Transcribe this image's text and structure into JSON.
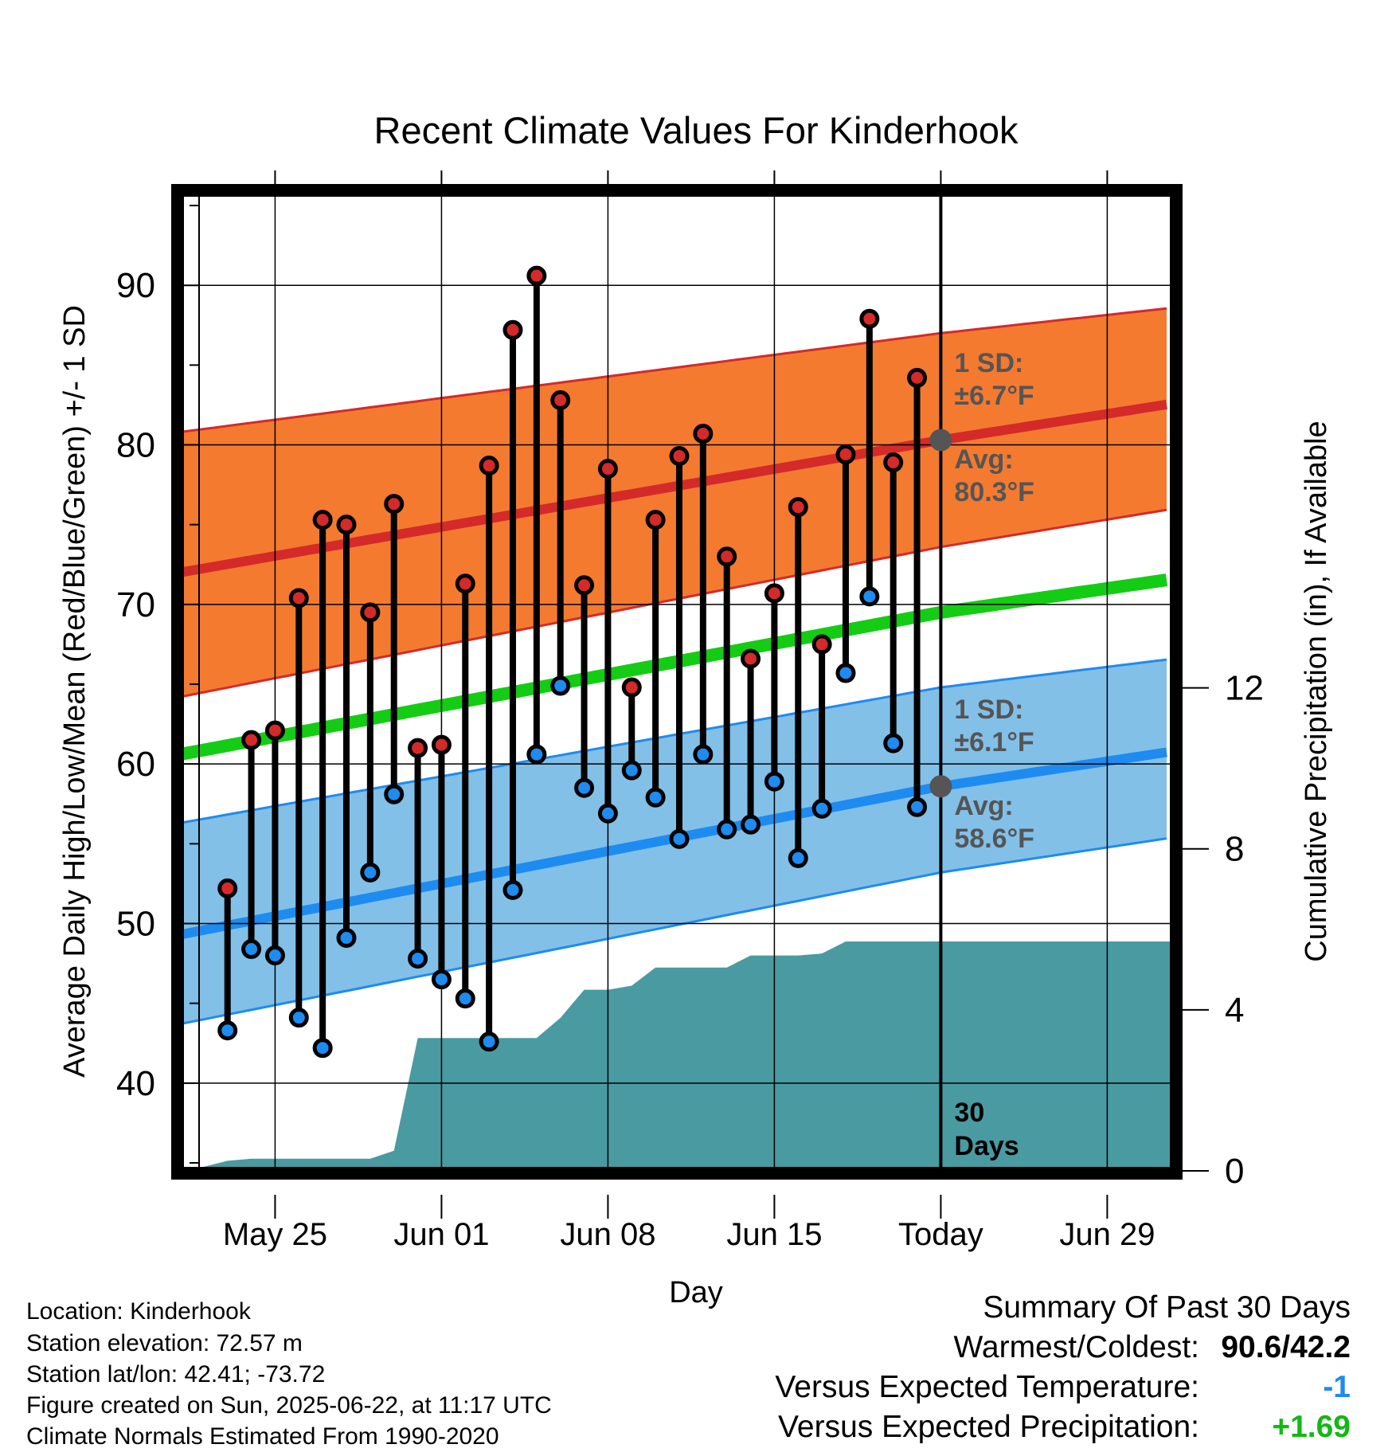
{
  "chart_data": {
    "type": "line",
    "title": "Recent Climate Values For Kinderhook",
    "xlabel": "Day",
    "ylabel": "Average Daily High/Low/Mean (Red/Blue/Green) +/- 1 SD",
    "y2label": "Cumulative Precipitation (in), If Available",
    "ylim": [
      34.5,
      95.8
    ],
    "y2lim": [
      0,
      24.3
    ],
    "y_ticks": [
      40,
      50,
      60,
      70,
      80,
      90
    ],
    "y2_ticks": [
      0,
      4,
      8,
      12
    ],
    "x_ticks": [
      {
        "day": 4,
        "label": "May 25"
      },
      {
        "day": 11,
        "label": "Jun 01"
      },
      {
        "day": 18,
        "label": "Jun 08"
      },
      {
        "day": 25,
        "label": "Jun 15"
      },
      {
        "day": 32,
        "label": "Today"
      },
      {
        "day": 39,
        "label": "Jun 29"
      }
    ],
    "x_range": [
      0,
      41.8
    ],
    "grid": true,
    "days": [
      {
        "day": 2,
        "high": 52.2,
        "low": 43.3
      },
      {
        "day": 3,
        "high": 61.5,
        "low": 48.4
      },
      {
        "day": 4,
        "high": 62.1,
        "low": 48.0
      },
      {
        "day": 5,
        "high": 70.4,
        "low": 44.1
      },
      {
        "day": 6,
        "high": 75.3,
        "low": 42.2
      },
      {
        "day": 7,
        "high": 75.0,
        "low": 49.1
      },
      {
        "day": 8,
        "high": 69.5,
        "low": 53.2
      },
      {
        "day": 9,
        "high": 76.3,
        "low": 58.1
      },
      {
        "day": 10,
        "high": 61.0,
        "low": 47.8
      },
      {
        "day": 11,
        "high": 61.2,
        "low": 46.5
      },
      {
        "day": 12,
        "high": 71.3,
        "low": 45.3
      },
      {
        "day": 13,
        "high": 78.7,
        "low": 42.6
      },
      {
        "day": 14,
        "high": 87.2,
        "low": 52.1
      },
      {
        "day": 15,
        "high": 90.6,
        "low": 60.6
      },
      {
        "day": 16,
        "high": 82.8,
        "low": 64.9
      },
      {
        "day": 17,
        "high": 71.2,
        "low": 58.5
      },
      {
        "day": 18,
        "high": 78.5,
        "low": 56.9
      },
      {
        "day": 19,
        "high": 64.8,
        "low": 59.6
      },
      {
        "day": 20,
        "high": 75.3,
        "low": 57.9
      },
      {
        "day": 21,
        "high": 79.3,
        "low": 55.3
      },
      {
        "day": 22,
        "high": 80.7,
        "low": 60.6
      },
      {
        "day": 23,
        "high": 73.0,
        "low": 55.9
      },
      {
        "day": 24,
        "high": 66.6,
        "low": 56.2
      },
      {
        "day": 25,
        "high": 70.7,
        "low": 58.9
      },
      {
        "day": 26,
        "high": 76.1,
        "low": 54.1
      },
      {
        "day": 27,
        "high": 67.5,
        "low": 57.2
      },
      {
        "day": 28,
        "high": 79.4,
        "low": 65.7
      },
      {
        "day": 29,
        "high": 87.9,
        "low": 70.5
      },
      {
        "day": 30,
        "high": 78.9,
        "low": 61.3
      },
      {
        "day": 31,
        "high": 84.2,
        "low": 57.3
      }
    ],
    "normals": {
      "day": [
        0,
        32,
        41.8
      ],
      "high_avg": [
        72.0,
        80.3,
        82.6
      ],
      "high_plus_sd": [
        80.8,
        87.0,
        88.6
      ],
      "high_minus_sd": [
        64.2,
        73.6,
        76.0
      ],
      "mean": [
        60.6,
        69.5,
        71.6
      ],
      "low_avg": [
        49.3,
        58.6,
        60.8
      ],
      "low_plus_sd": [
        56.3,
        64.8,
        66.6
      ],
      "low_minus_sd": [
        43.7,
        53.2,
        55.4
      ]
    },
    "precip": {
      "day": [
        0,
        1,
        2,
        3,
        4,
        5,
        6,
        7,
        8,
        9,
        10,
        11,
        12,
        13,
        14,
        15,
        16,
        17,
        18,
        19,
        20,
        21,
        22,
        23,
        24,
        25,
        26,
        27,
        28,
        29,
        30,
        31,
        32,
        41.8
      ],
      "cum": [
        0.0,
        0.1,
        0.25,
        0.3,
        0.3,
        0.3,
        0.3,
        0.3,
        0.3,
        0.5,
        3.3,
        3.3,
        3.3,
        3.3,
        3.3,
        3.3,
        3.8,
        4.5,
        4.5,
        4.6,
        5.05,
        5.05,
        5.05,
        5.05,
        5.35,
        5.35,
        5.35,
        5.4,
        5.7,
        5.7,
        5.7,
        5.7,
        5.7,
        5.7
      ]
    },
    "today_day": 32,
    "annotations": {
      "high_sd_label": "1 SD:",
      "high_sd_value": "±6.7°F",
      "high_avg_label": "Avg:",
      "high_avg_value": "80.3°F",
      "low_sd_label": "1 SD:",
      "low_sd_value": "±6.1°F",
      "low_avg_label": "Avg:",
      "low_avg_value": "58.6°F",
      "days_line1": "30",
      "days_line2": "Days"
    },
    "colors": {
      "high_band": "#f47a30",
      "high_line": "#d42a2a",
      "low_band": "#82c0e8",
      "low_line": "#1e8bf0",
      "mean_line": "#14cc14",
      "precip": "#4a9aa2",
      "high_dot": "#d42a2a",
      "low_dot": "#1e8bf0",
      "annotation_text": "#555555"
    }
  },
  "metadata": {
    "location": "Location: Kinderhook",
    "elevation": "Station elevation: 72.57 m",
    "latlon": "Station lat/lon: 42.41; -73.72",
    "created": "Figure created on Sun, 2025-06-22, at 11:17 UTC",
    "normals": "Climate Normals Estimated From 1990-2020"
  },
  "summary": {
    "heading": "Summary Of Past 30 Days",
    "warm_cold_label": "Warmest/Coldest:",
    "warm_cold_value": "90.6/42.2",
    "temp_label": "Versus Expected Temperature:",
    "temp_value": "-1",
    "temp_color": "#1e8bf0",
    "precip_label": "Versus Expected Precipitation:",
    "precip_value": "+1.69",
    "precip_color": "#14b814"
  }
}
